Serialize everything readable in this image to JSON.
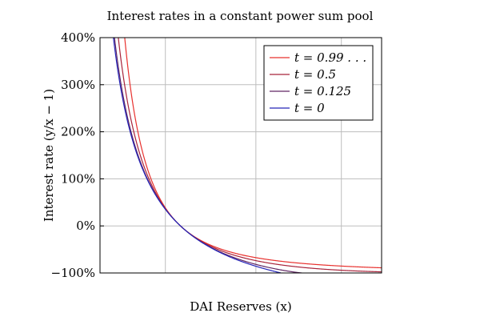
{
  "chart_data": {
    "type": "line",
    "title": "Interest rates in a constant power sum pool",
    "xlabel": "DAI Reserves (x)",
    "ylabel": "Interest rate (y/x − 1)",
    "y_ticks": [
      "400%",
      "300%",
      "200%",
      "100%",
      "0%",
      "−100%"
    ],
    "y_tick_values": [
      400,
      300,
      200,
      100,
      0,
      -100
    ],
    "ylim": [
      -100,
      400
    ],
    "xlim": [
      0.2,
      3
    ],
    "x_tick_labels": "none",
    "grid": true,
    "legend_position": "top-right",
    "series": [
      {
        "name": "t = 0.99 . . .",
        "t": 0.99,
        "color": "#e8312e"
      },
      {
        "name": "t = 0.5",
        "t": 0.5,
        "color": "#a8243b"
      },
      {
        "name": "t = 0.125",
        "t": 0.125,
        "color": "#602663"
      },
      {
        "name": "t = 0",
        "t": 0,
        "color": "#2424b8"
      }
    ]
  }
}
